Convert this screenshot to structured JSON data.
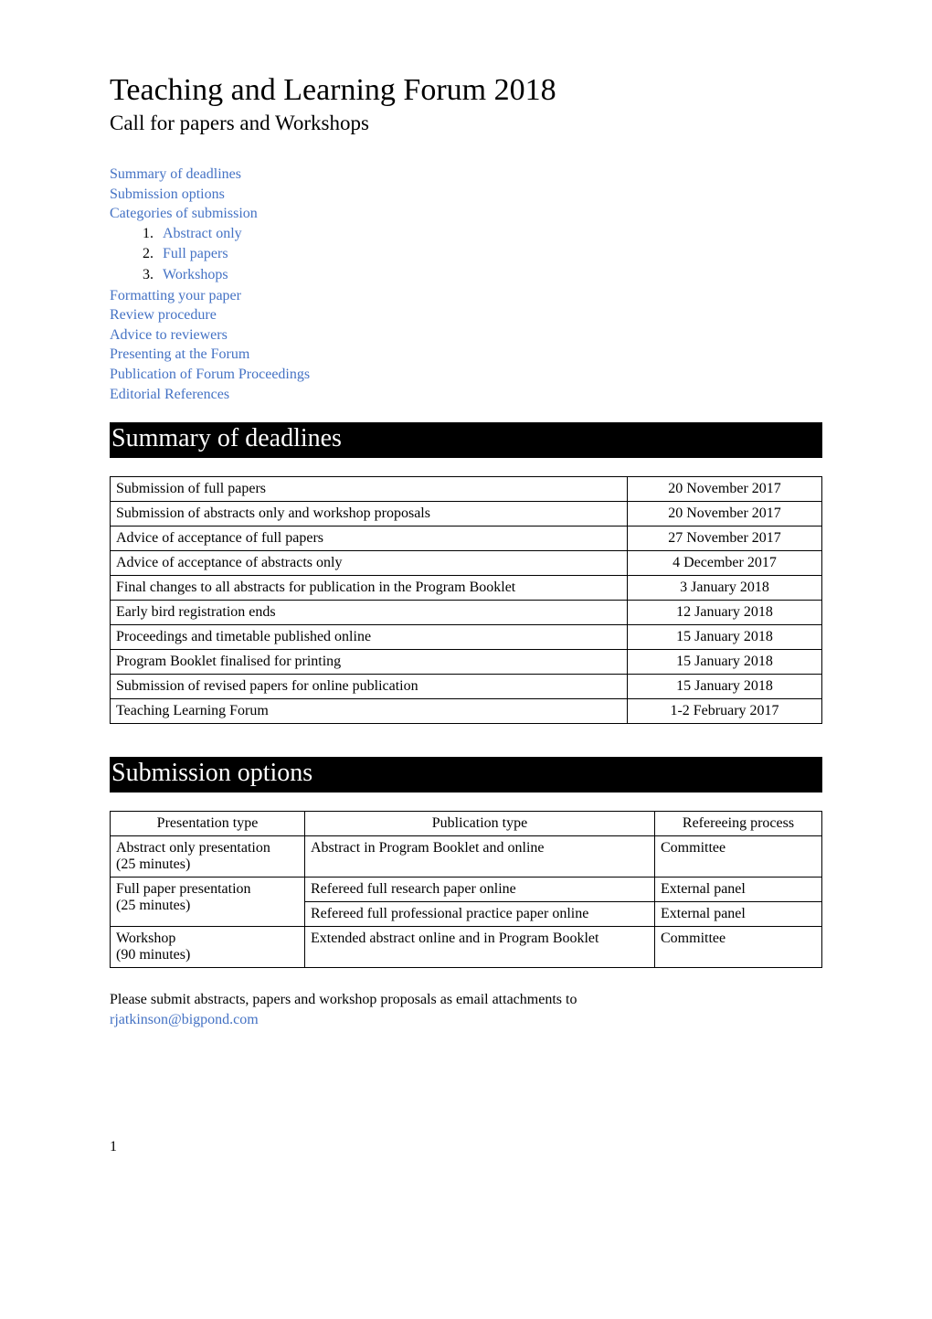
{
  "title": "Teaching and Learning Forum 2018",
  "subtitle": "Call for papers and Workshops",
  "toc": {
    "summary": "Summary of deadlines",
    "options": "Submission options",
    "categories": "Categories of submission",
    "cat_items": {
      "abstract": "Abstract only",
      "full": "Full papers",
      "workshops": "Workshops"
    },
    "formatting": "Formatting your paper",
    "review": "Review procedure",
    "advice": "Advice to reviewers",
    "presenting": "Presenting at the Forum",
    "publication": "Publication of Forum Proceedings",
    "editorial": "Editorial References"
  },
  "deadlines_heading": "Summary of deadlines",
  "deadlines": [
    {
      "item": "Submission of full papers",
      "date": "20 November 2017"
    },
    {
      "item": "Submission of abstracts only and workshop proposals",
      "date": "20 November 2017"
    },
    {
      "item": "Advice of acceptance of full papers",
      "date": "27 November 2017"
    },
    {
      "item": "Advice of acceptance of abstracts only",
      "date": "4 December 2017"
    },
    {
      "item": "Final changes to all abstracts for publication in the Program Booklet",
      "date": "3 January 2018"
    },
    {
      "item": "Early bird registration ends",
      "date": "12 January 2018"
    },
    {
      "item": "Proceedings and timetable published online",
      "date": "15 January 2018"
    },
    {
      "item": "Program Booklet finalised for printing",
      "date": "15 January 2018"
    },
    {
      "item": "Submission of revised papers for online publication",
      "date": "15 January 2018"
    },
    {
      "item": "Teaching Learning Forum",
      "date": "1-2 February 2017"
    }
  ],
  "options_heading": "Submission options",
  "options_headers": {
    "presentation": "Presentation type",
    "publication": "Publication type",
    "referee": "Refereeing process"
  },
  "options_rows": {
    "abstract_pres_l1": "Abstract only presentation",
    "abstract_pres_l2": "(25 minutes)",
    "abstract_pub": "Abstract in Program Booklet and online",
    "abstract_ref": "Committee",
    "full_pres_l1": "Full paper presentation",
    "full_pres_l2": "(25 minutes)",
    "full_pub_1": "Refereed full research paper online",
    "full_ref_1": "External panel",
    "full_pub_2": "Refereed full professional practice paper online",
    "full_ref_2": "External panel",
    "workshop_pres_l1": "Workshop",
    "workshop_pres_l2": "(90 minutes)",
    "workshop_pub": "Extended abstract  online and in Program Booklet",
    "workshop_ref": "Committee"
  },
  "submit_note": "Please submit abstracts, papers and workshop proposals as email attachments to ",
  "submit_email": "rjatkinson@bigpond.com",
  "page_number": "1"
}
